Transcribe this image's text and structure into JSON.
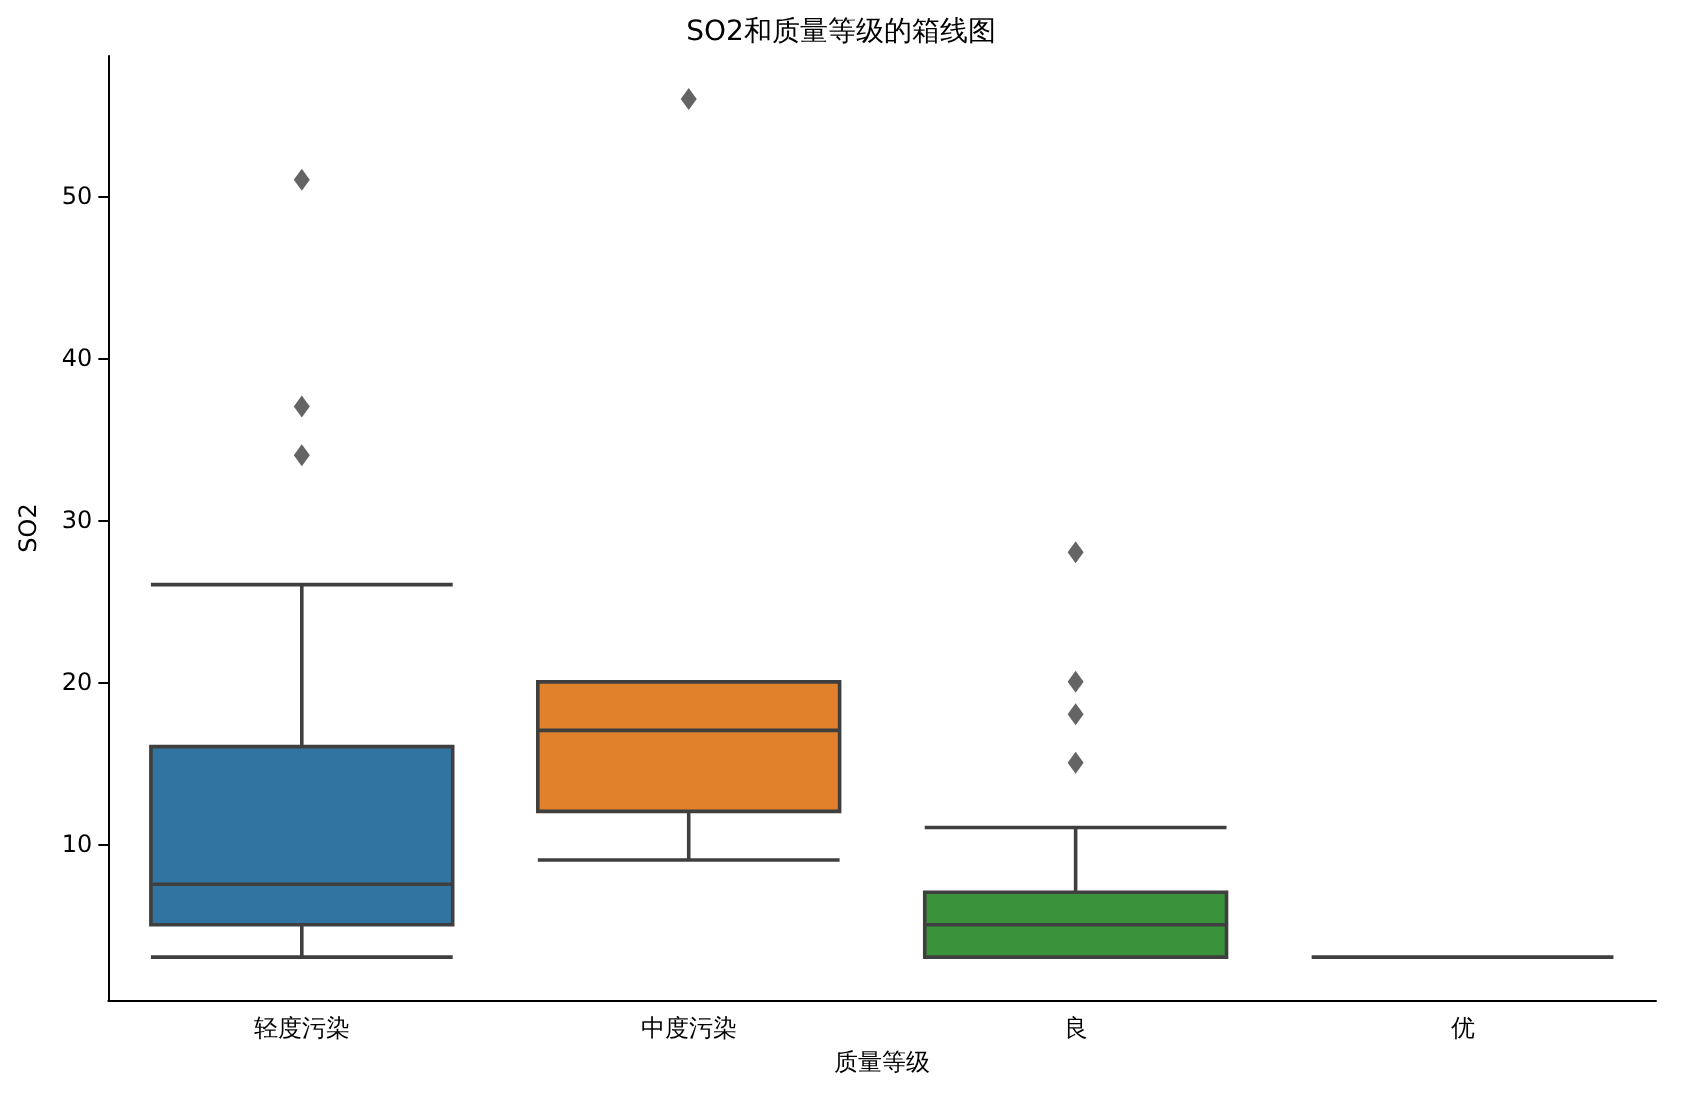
{
  "chart_data": {
    "type": "box",
    "title": "SO2和质量等级的箱线图",
    "xlabel": "质量等级",
    "ylabel": "SO2",
    "categories": [
      "轻度污染",
      "中度污染",
      "良",
      "优"
    ],
    "colors": [
      "#3274a1",
      "#e1812c",
      "#3a923a",
      "#3f3f3f"
    ],
    "boxes": [
      {
        "low": 3,
        "q1": 5,
        "median": 7.5,
        "q3": 16,
        "high": 26,
        "outliers": [
          34,
          37,
          51
        ]
      },
      {
        "low": 9,
        "q1": 12,
        "median": 17,
        "q3": 20,
        "high": 20,
        "outliers": [
          56
        ]
      },
      {
        "low": 3,
        "q1": 3,
        "median": 5,
        "q3": 7,
        "high": 11,
        "outliers": [
          15,
          18,
          20,
          28
        ]
      },
      {
        "low": 3,
        "q1": 3,
        "median": 3,
        "q3": 3,
        "high": 3
      }
    ],
    "marker": "diamond",
    "ylim": [
      0.35,
      58.65
    ],
    "yticks": [
      10,
      20,
      30,
      40,
      50
    ],
    "grid": false
  }
}
